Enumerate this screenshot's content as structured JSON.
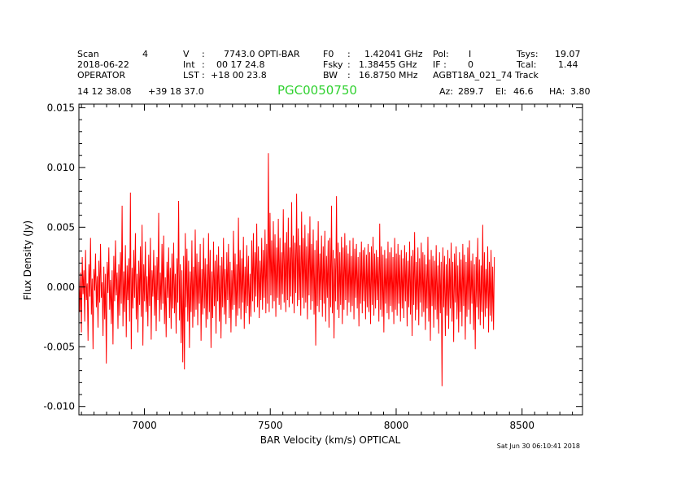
{
  "header": {
    "scan_label": "Scan",
    "scan_value": "4",
    "date": "2018-06-22",
    "observer": "OPERATOR",
    "v_label": "V",
    "v_value": "7743.0 OPTI-BAR",
    "int_label": "Int",
    "int_value": "00 17 24.8",
    "lst_label": "LST",
    "lst_value": "+18 00 23.8",
    "f0_label": "F0",
    "f0_value": "1.42041 GHz",
    "fsky_label": "Fsky",
    "fsky_value": "1.38455 GHz",
    "bw_label": "BW",
    "bw_value": "16.8750 MHz",
    "pol_label": "Pol:",
    "pol_value": "I",
    "if_label": "IF :",
    "if_value": "0",
    "project": "AGBT18A_021_74 Track",
    "tsys_label": "Tsys:",
    "tsys_value": "19.07",
    "tcal_label": "Tcal:",
    "tcal_value": "1.44",
    "ra": "14 12 38.08",
    "dec": "+39 18 37.0",
    "source": "PGC0050750",
    "az_label": "Az:",
    "az_value": "289.7",
    "el_label": "El:",
    "el_value": "46.6",
    "ha_label": "HA:",
    "ha_value": "3.80",
    "timestamp": "Sat Jun 30 06:10:41 2018"
  },
  "chart_data": {
    "type": "line",
    "xlabel": "BAR Velocity (km/s) OPTICAL",
    "ylabel": "Flux Density (Jy)",
    "xlim": [
      6740,
      8740
    ],
    "ylim": [
      -0.0107,
      0.0153
    ],
    "xticks": [
      7000,
      7500,
      8000,
      8500
    ],
    "xtick_labels": [
      "7000",
      "7500",
      "8000",
      "8500"
    ],
    "yticks": [
      0.015,
      0.01,
      0.005,
      0.0,
      -0.005,
      -0.01
    ],
    "ytick_labels": [
      "0.015",
      "0.010",
      "0.005",
      "0.000",
      "-0.005",
      "-0.010"
    ],
    "grid": false,
    "series": [
      {
        "color": "#ff0000",
        "x_start": 6740,
        "x_step": 3.3,
        "y": [
          0.0008,
          -0.0021,
          0.0012,
          -0.0038,
          0.0025,
          -0.0006,
          0.0014,
          -0.0029,
          0.0031,
          -0.0011,
          0.0003,
          -0.0045,
          0.0019,
          -0.0008,
          0.0041,
          -0.0023,
          0.0007,
          -0.0052,
          0.0015,
          -0.0003,
          0.0028,
          -0.0017,
          0.0009,
          -0.0034,
          0.0022,
          -0.0013,
          0.0036,
          -0.0009,
          0.0004,
          -0.0041,
          0.0017,
          -0.0027,
          0.0011,
          -0.0064,
          0.0021,
          -0.0005,
          0.0033,
          -0.0019,
          0.0006,
          -0.0031,
          0.0014,
          -0.0048,
          0.0026,
          -0.0012,
          0.0039,
          -0.0007,
          0.0012,
          -0.0035,
          0.0019,
          -0.0024,
          0.0029,
          -0.0014,
          0.0068,
          -0.0033,
          0.0013,
          -0.0021,
          0.0035,
          -0.0042,
          0.0018,
          -0.0011,
          0.0024,
          -0.0029,
          0.0079,
          -0.0052,
          0.0016,
          -0.0018,
          0.0031,
          -0.0009,
          0.0045,
          -0.0027,
          0.0011,
          -0.0038,
          0.0022,
          -0.0015,
          0.0034,
          -0.0025,
          0.0052,
          -0.0049,
          0.0019,
          -0.0012,
          0.0038,
          -0.0021,
          0.0009,
          -0.0033,
          0.0027,
          -0.0016,
          0.0041,
          -0.0044,
          0.0014,
          -0.0008,
          0.0031,
          -0.0024,
          0.0018,
          -0.0037,
          0.0025,
          -0.0011,
          0.0062,
          -0.0029,
          0.0012,
          -0.0019,
          0.0036,
          -0.0014,
          0.0043,
          -0.0031,
          0.0008,
          -0.0042,
          0.0021,
          -0.0009,
          0.0033,
          -0.0026,
          0.0016,
          -0.0035,
          0.0028,
          -0.0018,
          0.0037,
          -0.0022,
          0.0011,
          -0.0039,
          0.0024,
          -0.0013,
          0.0072,
          -0.0028,
          0.0019,
          -0.0047,
          0.0014,
          -0.0063,
          0.0026,
          -0.0069,
          0.0045,
          -0.0017,
          0.0032,
          -0.0029,
          0.0022,
          -0.0051,
          0.0013,
          -0.0021,
          0.0039,
          -0.0034,
          0.0017,
          -0.0025,
          0.0048,
          -0.0019,
          0.0028,
          -0.0032,
          0.0021,
          -0.0014,
          0.0036,
          -0.0045,
          0.0015,
          -0.0023,
          0.0041,
          -0.0018,
          0.0024,
          -0.0034,
          0.0019,
          -0.0027,
          0.0045,
          -0.0021,
          0.0031,
          -0.0051,
          0.0013,
          -0.0026,
          0.0038,
          -0.0016,
          0.0022,
          -0.0039,
          0.0027,
          -0.0012,
          0.0034,
          -0.0029,
          0.0018,
          -0.0043,
          0.0025,
          -0.0017,
          0.0041,
          -0.0023,
          0.0015,
          -0.0031,
          0.0029,
          -0.0011,
          0.0036,
          -0.0026,
          0.0021,
          -0.0038,
          0.0014,
          -0.0019,
          0.0047,
          -0.0015,
          0.0028,
          -0.0033,
          0.0019,
          -0.0024,
          0.0058,
          -0.0018,
          0.0031,
          -0.0027,
          0.0024,
          -0.0013,
          0.0042,
          -0.0035,
          0.0017,
          -0.0022,
          0.0035,
          -0.0016,
          0.0026,
          -0.0031,
          0.0011,
          -0.0025,
          0.0039,
          -0.0012,
          0.0045,
          -0.0021,
          0.0029,
          -0.0008,
          0.0053,
          -0.0017,
          0.0034,
          -0.0026,
          0.0022,
          -0.0011,
          0.0041,
          -0.0019,
          0.0031,
          -0.0009,
          0.0048,
          -0.0022,
          0.0036,
          -0.0014,
          0.0112,
          -0.0021,
          0.0062,
          -0.0007,
          0.0039,
          -0.0018,
          0.0055,
          -0.0012,
          0.0044,
          -0.0025,
          0.0033,
          -0.0009,
          0.0057,
          -0.0015,
          0.0041,
          -0.0019,
          0.0029,
          -0.0006,
          0.0065,
          -0.0013,
          0.0037,
          -0.0021,
          0.0046,
          -0.0011,
          0.0058,
          -0.0017,
          0.0033,
          -0.0008,
          0.0071,
          -0.0014,
          0.0043,
          -0.0022,
          0.0037,
          -0.0005,
          0.0078,
          -0.0016,
          0.0049,
          -0.0011,
          0.0035,
          -0.0024,
          0.0063,
          -0.0009,
          0.0041,
          -0.0018,
          0.0052,
          -0.0013,
          0.0034,
          -0.0027,
          0.0045,
          -0.0007,
          0.0059,
          -0.0019,
          0.0036,
          -0.0012,
          0.0048,
          -0.0023,
          0.0031,
          -0.0049,
          0.0039,
          -0.0016,
          0.0055,
          -0.0021,
          0.0028,
          -0.0011,
          0.0043,
          -0.0025,
          0.0034,
          -0.0014,
          0.0047,
          -0.0029,
          0.0026,
          -0.0009,
          0.0039,
          -0.0034,
          0.0041,
          -0.0017,
          0.0068,
          -0.0022,
          0.0031,
          -0.0043,
          0.0024,
          -0.0012,
          0.0076,
          -0.0019,
          0.0037,
          -0.0026,
          0.0029,
          -0.0015,
          0.0042,
          -0.0031,
          0.0033,
          -0.0019,
          0.0045,
          -0.0011,
          0.0035,
          -0.0024,
          0.0028,
          -0.0013,
          0.0039,
          -0.0021,
          0.0026,
          -0.0016,
          0.0041,
          -0.0027,
          0.0032,
          -0.0009,
          0.0036,
          -0.0018,
          0.0025,
          -0.0033,
          0.0029,
          -0.0014,
          0.0038,
          -0.0022,
          0.0031,
          -0.0012,
          0.0033,
          -0.0027,
          0.0027,
          -0.0017,
          0.0036,
          -0.0021,
          0.0029,
          -0.0031,
          0.0034,
          -0.0015,
          0.0042,
          -0.0024,
          0.0028,
          -0.0018,
          0.0031,
          -0.0011,
          0.0025,
          -0.0029,
          0.0053,
          -0.0019,
          0.0034,
          -0.0025,
          0.0027,
          -0.0038,
          0.0031,
          -0.0014,
          0.0024,
          -0.0022,
          0.0038,
          -0.0027,
          0.0029,
          -0.0016,
          0.0033,
          -0.0021,
          0.0025,
          -0.0031,
          0.0041,
          -0.0019,
          0.0028,
          -0.0024,
          0.0036,
          -0.0014,
          0.0027,
          -0.0029,
          0.0031,
          -0.0018,
          0.0024,
          -0.0026,
          0.0035,
          -0.0012,
          0.0029,
          -0.0033,
          0.0022,
          -0.0017,
          0.0038,
          -0.0023,
          0.0026,
          -0.0041,
          0.0031,
          -0.0015,
          0.0046,
          -0.0028,
          0.0021,
          -0.0019,
          0.0033,
          -0.0032,
          0.0024,
          -0.0013,
          0.0037,
          -0.0025,
          0.0029,
          -0.0021,
          0.0027,
          -0.0036,
          0.0019,
          -0.0018,
          0.0042,
          -0.0029,
          0.0023,
          -0.0045,
          0.0031,
          -0.0016,
          0.0026,
          -0.0034,
          0.0022,
          -0.0019,
          0.0035,
          -0.0027,
          0.0018,
          -0.0039,
          0.0029,
          -0.0022,
          0.0021,
          -0.0083,
          0.0033,
          -0.0017,
          0.0026,
          -0.0041,
          0.0019,
          -0.0024,
          0.0031,
          -0.0035,
          0.0024,
          -0.0018,
          0.0037,
          -0.0029,
          0.0021,
          -0.0046,
          0.0028,
          -0.0013,
          0.0034,
          -0.0027,
          0.0018,
          -0.0038,
          0.0029,
          -0.0021,
          0.0023,
          -0.0033,
          0.0036,
          -0.0016,
          0.0027,
          -0.0044,
          0.0021,
          -0.0025,
          0.0033,
          -0.0019,
          0.0039,
          -0.0031,
          0.0022,
          -0.0014,
          0.0028,
          -0.0036,
          0.0019,
          -0.0052,
          0.0025,
          -0.0017,
          0.0041,
          -0.0027,
          0.0023,
          -0.0032,
          0.0018,
          -0.0021,
          0.0052,
          -0.0035,
          0.0029,
          -0.0025,
          0.0015,
          -0.0018,
          0.0034,
          -0.0038,
          0.0021,
          -0.0024,
          0.0031,
          -0.0029,
          0.0017,
          -0.0036,
          0.0025
        ]
      }
    ]
  }
}
